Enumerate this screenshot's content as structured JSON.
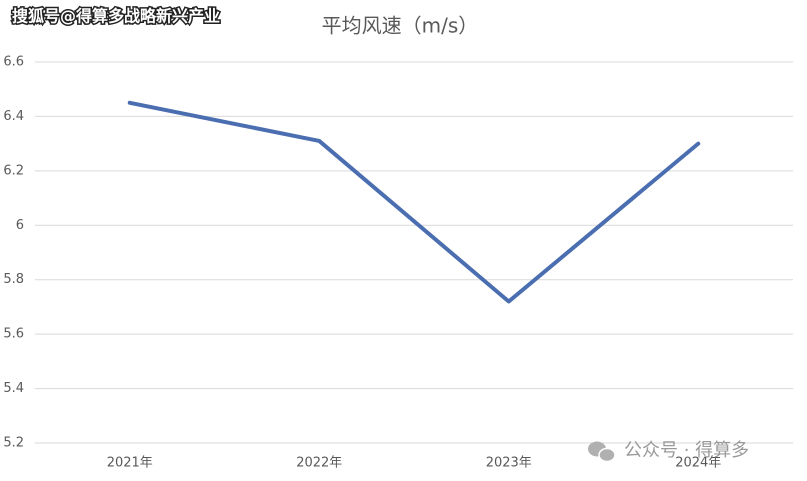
{
  "chart_data": {
    "type": "line",
    "title": "平均风速（m/s）",
    "categories": [
      "2021年",
      "2022年",
      "2023年",
      "2024年"
    ],
    "series": [
      {
        "name": "平均风速",
        "color": "#4a6eb0",
        "values": [
          6.45,
          6.31,
          5.72,
          6.3
        ]
      }
    ],
    "ylim": [
      5.2,
      6.6
    ],
    "yticks": [
      5.2,
      5.4,
      5.6,
      5.8,
      6,
      6.2,
      6.4,
      6.6
    ],
    "grid": true,
    "legend": false,
    "annotations": [
      "搜狐号@得算多战略新兴产业",
      "公众号 · 得算多"
    ]
  }
}
